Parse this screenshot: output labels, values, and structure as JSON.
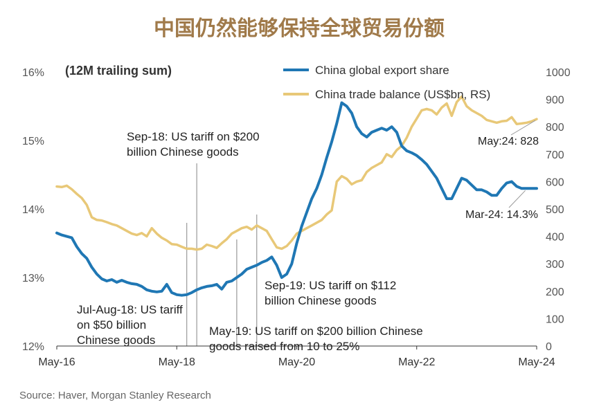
{
  "chart_data": {
    "type": "line",
    "title": "中国仍然能够保持全球贸易份额",
    "subtitle": "(12M trailing sum)",
    "source": "Source: Haver, Morgan Stanley Research",
    "colors": {
      "title": "#a07a4a",
      "export_share": "#1f77b4",
      "trade_balance": "#e8c878",
      "axis": "#333333",
      "annotation_line": "#999999",
      "source": "#666666"
    },
    "x_axis": {
      "start": "May-16",
      "end": "May-24",
      "range_months": [
        0,
        96
      ],
      "ticks": [
        {
          "label": "May-16",
          "month": 0
        },
        {
          "label": "May-18",
          "month": 24
        },
        {
          "label": "May-20",
          "month": 48
        },
        {
          "label": "May-22",
          "month": 72
        },
        {
          "label": "May-24",
          "month": 96
        }
      ]
    },
    "y_left": {
      "ylim": [
        12,
        16
      ],
      "ticks": [
        {
          "value": 12,
          "label": "12%"
        },
        {
          "value": 13,
          "label": "13%"
        },
        {
          "value": 14,
          "label": "14%"
        },
        {
          "value": 15,
          "label": "15%"
        },
        {
          "value": 16,
          "label": "16%"
        }
      ]
    },
    "y_right": {
      "ylim": [
        0,
        1000
      ],
      "ticks": [
        {
          "value": 0,
          "label": "0"
        },
        {
          "value": 100,
          "label": "100"
        },
        {
          "value": 200,
          "label": "200"
        },
        {
          "value": 300,
          "label": "300"
        },
        {
          "value": 400,
          "label": "400"
        },
        {
          "value": 500,
          "label": "500"
        },
        {
          "value": 600,
          "label": "600"
        },
        {
          "value": 700,
          "label": "700"
        },
        {
          "value": 800,
          "label": "800"
        },
        {
          "value": 900,
          "label": "900"
        },
        {
          "value": 1000,
          "label": "1000"
        }
      ]
    },
    "series": [
      {
        "name": "China global export share",
        "axis": "left",
        "color_key": "export_share",
        "x": [
          0,
          1,
          2,
          3,
          4,
          5,
          6,
          7,
          8,
          9,
          10,
          11,
          12,
          13,
          14,
          15,
          16,
          17,
          18,
          19,
          20,
          21,
          22,
          23,
          24,
          25,
          26,
          27,
          28,
          29,
          30,
          31,
          32,
          33,
          34,
          35,
          36,
          37,
          38,
          39,
          40,
          41,
          42,
          43,
          44,
          45,
          46,
          47,
          48,
          49,
          50,
          51,
          52,
          53,
          54,
          55,
          56,
          57,
          58,
          59,
          60,
          61,
          62,
          63,
          64,
          65,
          66,
          67,
          68,
          69,
          70,
          71,
          72,
          73,
          74,
          75,
          76,
          77,
          78,
          79,
          80,
          81,
          82,
          83,
          84,
          85,
          86,
          87,
          88,
          89,
          90,
          91,
          92,
          93,
          94,
          95,
          96
        ],
        "values": [
          13.65,
          13.62,
          13.6,
          13.58,
          13.45,
          13.35,
          13.28,
          13.15,
          13.05,
          12.98,
          12.95,
          12.97,
          12.93,
          12.96,
          12.93,
          12.91,
          12.9,
          12.87,
          12.82,
          12.8,
          12.79,
          12.8,
          12.9,
          12.78,
          12.75,
          12.74,
          12.75,
          12.78,
          12.82,
          12.85,
          12.87,
          12.88,
          12.9,
          12.83,
          12.93,
          12.95,
          13.0,
          13.05,
          13.12,
          13.15,
          13.18,
          13.22,
          13.25,
          13.3,
          13.18,
          13.0,
          13.05,
          13.2,
          13.5,
          13.75,
          13.95,
          14.15,
          14.3,
          14.5,
          14.75,
          14.98,
          15.25,
          15.55,
          15.5,
          15.4,
          15.2,
          15.1,
          15.05,
          15.12,
          15.15,
          15.18,
          15.15,
          15.2,
          15.12,
          14.92,
          14.85,
          14.82,
          14.78,
          14.72,
          14.65,
          14.55,
          14.45,
          14.3,
          14.15,
          14.15,
          14.3,
          14.45,
          14.42,
          14.35,
          14.28,
          14.28,
          14.25,
          14.2,
          14.2,
          14.3,
          14.38,
          14.4,
          14.33,
          14.3,
          14.3,
          14.3,
          14.3
        ]
      },
      {
        "name": "China trade balance (US$bn, RS)",
        "axis": "right",
        "color_key": "trade_balance",
        "x": [
          0,
          1,
          2,
          3,
          4,
          5,
          6,
          7,
          8,
          9,
          10,
          11,
          12,
          13,
          14,
          15,
          16,
          17,
          18,
          19,
          20,
          21,
          22,
          23,
          24,
          25,
          26,
          27,
          28,
          29,
          30,
          31,
          32,
          33,
          34,
          35,
          36,
          37,
          38,
          39,
          40,
          41,
          42,
          43,
          44,
          45,
          46,
          47,
          48,
          49,
          50,
          51,
          52,
          53,
          54,
          55,
          56,
          57,
          58,
          59,
          60,
          61,
          62,
          63,
          64,
          65,
          66,
          67,
          68,
          69,
          70,
          71,
          72,
          73,
          74,
          75,
          76,
          77,
          78,
          79,
          80,
          81,
          82,
          83,
          84,
          85,
          86,
          87,
          88,
          89,
          90,
          91,
          92,
          93,
          94,
          95,
          96
        ],
        "values": [
          582,
          580,
          585,
          572,
          555,
          540,
          515,
          470,
          460,
          458,
          452,
          445,
          440,
          430,
          420,
          410,
          405,
          412,
          400,
          430,
          410,
          395,
          385,
          372,
          370,
          362,
          355,
          355,
          352,
          355,
          370,
          365,
          358,
          375,
          390,
          410,
          420,
          430,
          435,
          425,
          440,
          430,
          420,
          390,
          360,
          355,
          365,
          385,
          410,
          420,
          430,
          440,
          450,
          460,
          480,
          495,
          600,
          620,
          610,
          590,
          600,
          605,
          635,
          650,
          660,
          670,
          700,
          690,
          715,
          730,
          760,
          800,
          830,
          860,
          865,
          860,
          845,
          870,
          885,
          840,
          890,
          910,
          875,
          860,
          850,
          840,
          825,
          820,
          815,
          820,
          822,
          835,
          810,
          812,
          815,
          820,
          828
        ]
      }
    ],
    "legend": [
      {
        "label": "China global export share",
        "color_key": "export_share"
      },
      {
        "label": "China trade balance (US$bn, RS)",
        "color_key": "trade_balance"
      }
    ],
    "events": [
      {
        "label": "Jul-Aug-18",
        "month": 26
      },
      {
        "label": "Sep-18",
        "month": 28
      },
      {
        "label": "May-19",
        "month": 36
      },
      {
        "label": "Sep-19",
        "month": 40
      }
    ],
    "annotations": [
      {
        "lines": [
          "Sep-18: US tariff on $200",
          "billion Chinese goods"
        ]
      },
      {
        "lines": [
          "Jul-Aug-18: US tariff",
          "on $50 billion",
          "Chinese goods"
        ]
      },
      {
        "lines": [
          "Sep-19: US tariff on $112",
          "billion Chinese goods"
        ]
      },
      {
        "lines": [
          "May-19: US tariff on $200 billion Chinese",
          "goods raised from 10 to 25%"
        ]
      },
      {
        "lines": [
          "May:24: 828"
        ],
        "series": "China trade balance (US$bn, RS)",
        "month": 96,
        "value": 828
      },
      {
        "lines": [
          "Mar-24: 14.3%"
        ],
        "series": "China global export share",
        "month": 94,
        "value": 14.3
      }
    ]
  }
}
